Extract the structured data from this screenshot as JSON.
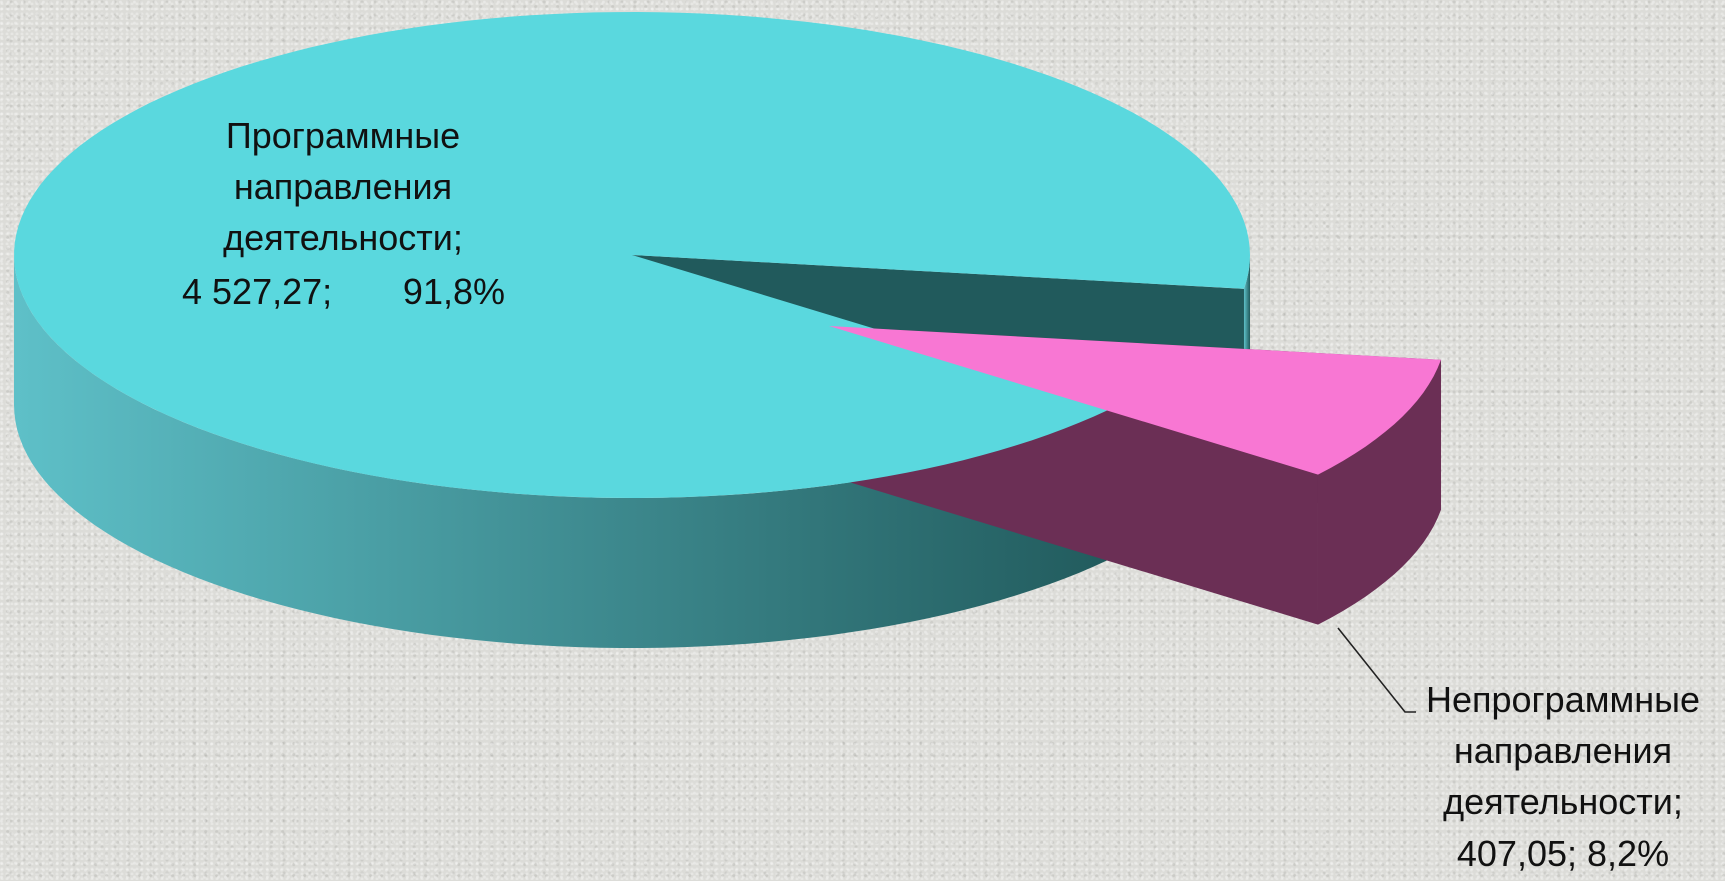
{
  "chart_data": {
    "type": "pie",
    "title": "",
    "categories": [
      "Программные направления деятельности",
      "Непрограммные направления деятельности"
    ],
    "values": [
      4527.27,
      407.05
    ],
    "percents": [
      91.8,
      8.2
    ],
    "colors": {
      "top": [
        "#5ad8de",
        "#f877d3"
      ],
      "side_light": [
        "#5ec0c8",
        "#6b2f55"
      ],
      "side_dark": [
        "#215a5c",
        "#5e284b"
      ]
    },
    "labels": [
      {
        "lines": [
          "Программные",
          "направления",
          "деятельности;"
        ],
        "value_text": "4 527,27;",
        "percent_text": "91,8%"
      },
      {
        "lines": [
          "Непрограммные",
          "направления",
          "деятельности;"
        ],
        "value_text": "407,05;",
        "percent_text": "8,2%"
      }
    ],
    "exploded_slice": 1,
    "legend": "none",
    "grid": false
  }
}
